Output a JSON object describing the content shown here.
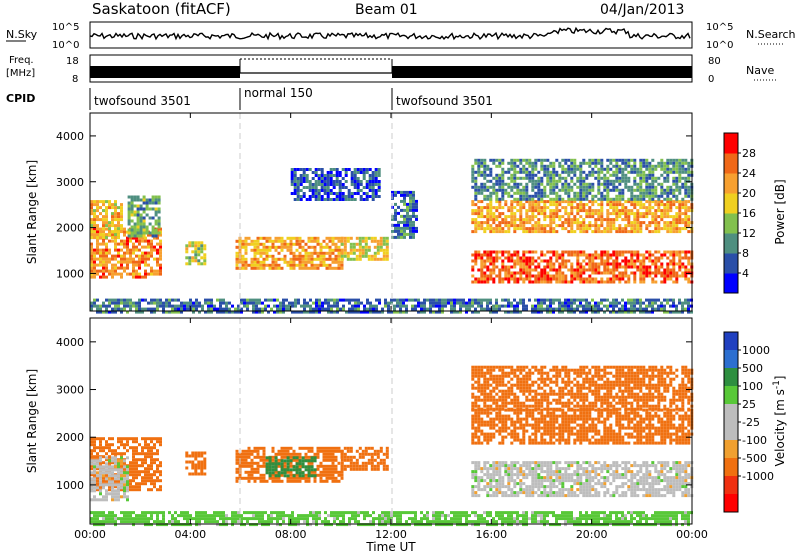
{
  "header": {
    "station": "Saskatoon (fitACF)",
    "beam": "Beam 01",
    "date": "04/Jan/2013"
  },
  "noise_panel": {
    "left_label": "N.Sky",
    "left_ticks": [
      "10^5",
      "10^0"
    ],
    "right_label": "N.Search",
    "right_ticks": [
      "10^5",
      "10^0"
    ]
  },
  "freq_panel": {
    "left_label_1": "Freq.",
    "left_label_2": "[MHz]",
    "left_ticks": [
      "18",
      "8"
    ],
    "right_label": "Nave",
    "right_ticks": [
      "80",
      "0"
    ]
  },
  "cpid_panel": {
    "label": "CPID",
    "segments": [
      {
        "name": "twofsound 3501",
        "start_hour": 0,
        "end_hour": 6
      },
      {
        "name": "normal 150",
        "start_hour": 6,
        "end_hour": 12
      },
      {
        "name": "twofsound 3501",
        "start_hour": 12,
        "end_hour": 24
      }
    ]
  },
  "colors": {
    "power_scale": [
      "#0000ff",
      "#2a4fa8",
      "#4f8f80",
      "#82c04e",
      "#f0d020",
      "#f7a030",
      "#f06818",
      "#ff0000"
    ],
    "velocity_scale": [
      "#2040c0",
      "#2c6fd0",
      "#2e8f40",
      "#58c838",
      "#bdbdbd",
      "#bdbdbd",
      "#f0a030",
      "#f07010",
      "#f03010",
      "#ff0000"
    ]
  },
  "chart_data": [
    {
      "type": "heatmap",
      "title": "",
      "xlabel": "Time UT",
      "ylabel": "Slant Range [km]",
      "x_ticks": [
        "00:00",
        "04:00",
        "08:00",
        "12:00",
        "16:00",
        "20:00",
        "00:00"
      ],
      "x_range_hours": [
        0,
        24
      ],
      "y_ticks": [
        "1000",
        "2000",
        "3000",
        "4000"
      ],
      "y_range": [
        180,
        4500
      ],
      "colorbar_label": "Power [dB]",
      "colorbar_ticks": [
        "4",
        "8",
        "12",
        "16",
        "20",
        "24",
        "28"
      ],
      "colorbar_range": [
        0,
        32
      ],
      "regions": [
        {
          "t0": 0.0,
          "t1": 2.8,
          "r0": 900,
          "r1": 2000,
          "value": 24
        },
        {
          "t0": 0.0,
          "t1": 1.2,
          "r0": 1800,
          "r1": 2600,
          "value": 20
        },
        {
          "t0": 1.5,
          "t1": 2.8,
          "r0": 1800,
          "r1": 2700,
          "value": 12
        },
        {
          "t0": 3.8,
          "t1": 4.6,
          "r0": 1200,
          "r1": 1700,
          "value": 16
        },
        {
          "t0": 5.8,
          "t1": 10.0,
          "r0": 1100,
          "r1": 1800,
          "value": 22
        },
        {
          "t0": 10.0,
          "t1": 11.8,
          "r0": 1300,
          "r1": 1800,
          "value": 18
        },
        {
          "t0": 8.0,
          "t1": 11.5,
          "r0": 2600,
          "r1": 3300,
          "value": 6
        },
        {
          "t0": 12.0,
          "t1": 13.0,
          "r0": 1800,
          "r1": 2800,
          "value": 8
        },
        {
          "t0": 15.2,
          "t1": 24.0,
          "r0": 800,
          "r1": 1500,
          "value": 26
        },
        {
          "t0": 15.2,
          "t1": 24.0,
          "r0": 1900,
          "r1": 2600,
          "value": 22
        },
        {
          "t0": 15.2,
          "t1": 24.0,
          "r0": 2600,
          "r1": 3500,
          "value": 10
        },
        {
          "t0": 0.0,
          "t1": 24.0,
          "r0": 180,
          "r1": 450,
          "value": 8
        }
      ]
    },
    {
      "type": "heatmap",
      "title": "",
      "xlabel": "Time UT",
      "ylabel": "Slant Range [km]",
      "x_ticks": [
        "00:00",
        "04:00",
        "08:00",
        "12:00",
        "16:00",
        "20:00",
        "00:00"
      ],
      "x_range_hours": [
        0,
        24
      ],
      "y_ticks": [
        "1000",
        "2000",
        "3000",
        "4000"
      ],
      "y_range": [
        180,
        4500
      ],
      "colorbar_label": "Velocity [m s^-1]",
      "colorbar_ticks": [
        "1000",
        "500",
        "100",
        "25",
        "-25",
        "-100",
        "-500",
        "-1000"
      ],
      "regions": [
        {
          "t0": 0.0,
          "t1": 2.8,
          "r0": 900,
          "r1": 2000,
          "value": -150
        },
        {
          "t0": 0.0,
          "t1": 1.5,
          "r0": 700,
          "r1": 1600,
          "value": 0
        },
        {
          "t0": 3.8,
          "t1": 4.6,
          "r0": 1200,
          "r1": 1700,
          "value": -150
        },
        {
          "t0": 5.8,
          "t1": 10.0,
          "r0": 1100,
          "r1": 1800,
          "value": -150
        },
        {
          "t0": 7.0,
          "t1": 9.0,
          "r0": 1200,
          "r1": 1600,
          "value": 300
        },
        {
          "t0": 10.0,
          "t1": 11.8,
          "r0": 1300,
          "r1": 1800,
          "value": -150
        },
        {
          "t0": 15.2,
          "t1": 24.0,
          "r0": 800,
          "r1": 1500,
          "value": 0
        },
        {
          "t0": 15.2,
          "t1": 24.0,
          "r0": 1900,
          "r1": 2600,
          "value": -150
        },
        {
          "t0": 15.2,
          "t1": 24.0,
          "r0": 2600,
          "r1": 3500,
          "value": -150
        },
        {
          "t0": 0.0,
          "t1": 24.0,
          "r0": 180,
          "r1": 450,
          "value": 50
        }
      ]
    }
  ]
}
